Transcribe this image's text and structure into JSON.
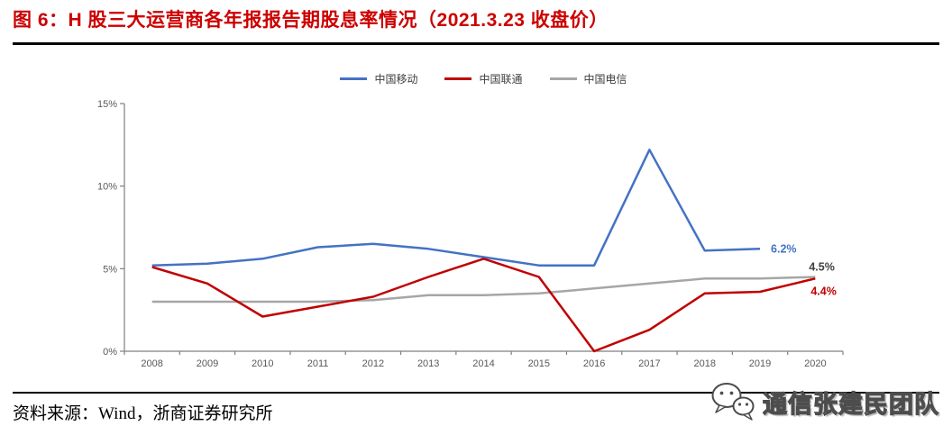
{
  "figure": {
    "title": "图 6：H 股三大运营商各年报报告期股息率情况（2021.3.23 收盘价）",
    "source": "资料来源：Wind，浙商证券研究所",
    "watermark": "通信张建民团队"
  },
  "chart_data": {
    "type": "line",
    "title": "H股三大运营商各年报报告期股息率",
    "categories": [
      "2008",
      "2009",
      "2010",
      "2011",
      "2012",
      "2013",
      "2014",
      "2015",
      "2016",
      "2017",
      "2018",
      "2019",
      "2020"
    ],
    "series": [
      {
        "name": "中国移动",
        "color": "#4472C4",
        "values": [
          5.2,
          5.3,
          5.6,
          6.3,
          6.5,
          6.2,
          5.7,
          5.2,
          5.2,
          12.2,
          6.1,
          6.2,
          null
        ],
        "end_label": "6.2%",
        "end_label_color": "#4472C4"
      },
      {
        "name": "中国联通",
        "color": "#C00000",
        "values": [
          5.1,
          4.1,
          2.1,
          2.7,
          3.3,
          4.5,
          5.6,
          4.5,
          0.0,
          1.3,
          3.5,
          3.6,
          4.4
        ],
        "end_label": "4.4%",
        "end_label_color": "#C00000"
      },
      {
        "name": "中国电信",
        "color": "#A6A6A6",
        "values": [
          3.0,
          3.0,
          3.0,
          3.0,
          3.1,
          3.4,
          3.4,
          3.5,
          3.8,
          4.1,
          4.4,
          4.4,
          4.5
        ],
        "end_label": "4.5%",
        "end_label_color": "#404040"
      }
    ],
    "xlabel": "",
    "ylabel": "",
    "ylim": [
      0,
      15
    ],
    "yticks": [
      "0%",
      "5%",
      "10%",
      "15%"
    ],
    "ytick_values": [
      0,
      5,
      10,
      15
    ],
    "grid": false,
    "legend_position": "top"
  }
}
